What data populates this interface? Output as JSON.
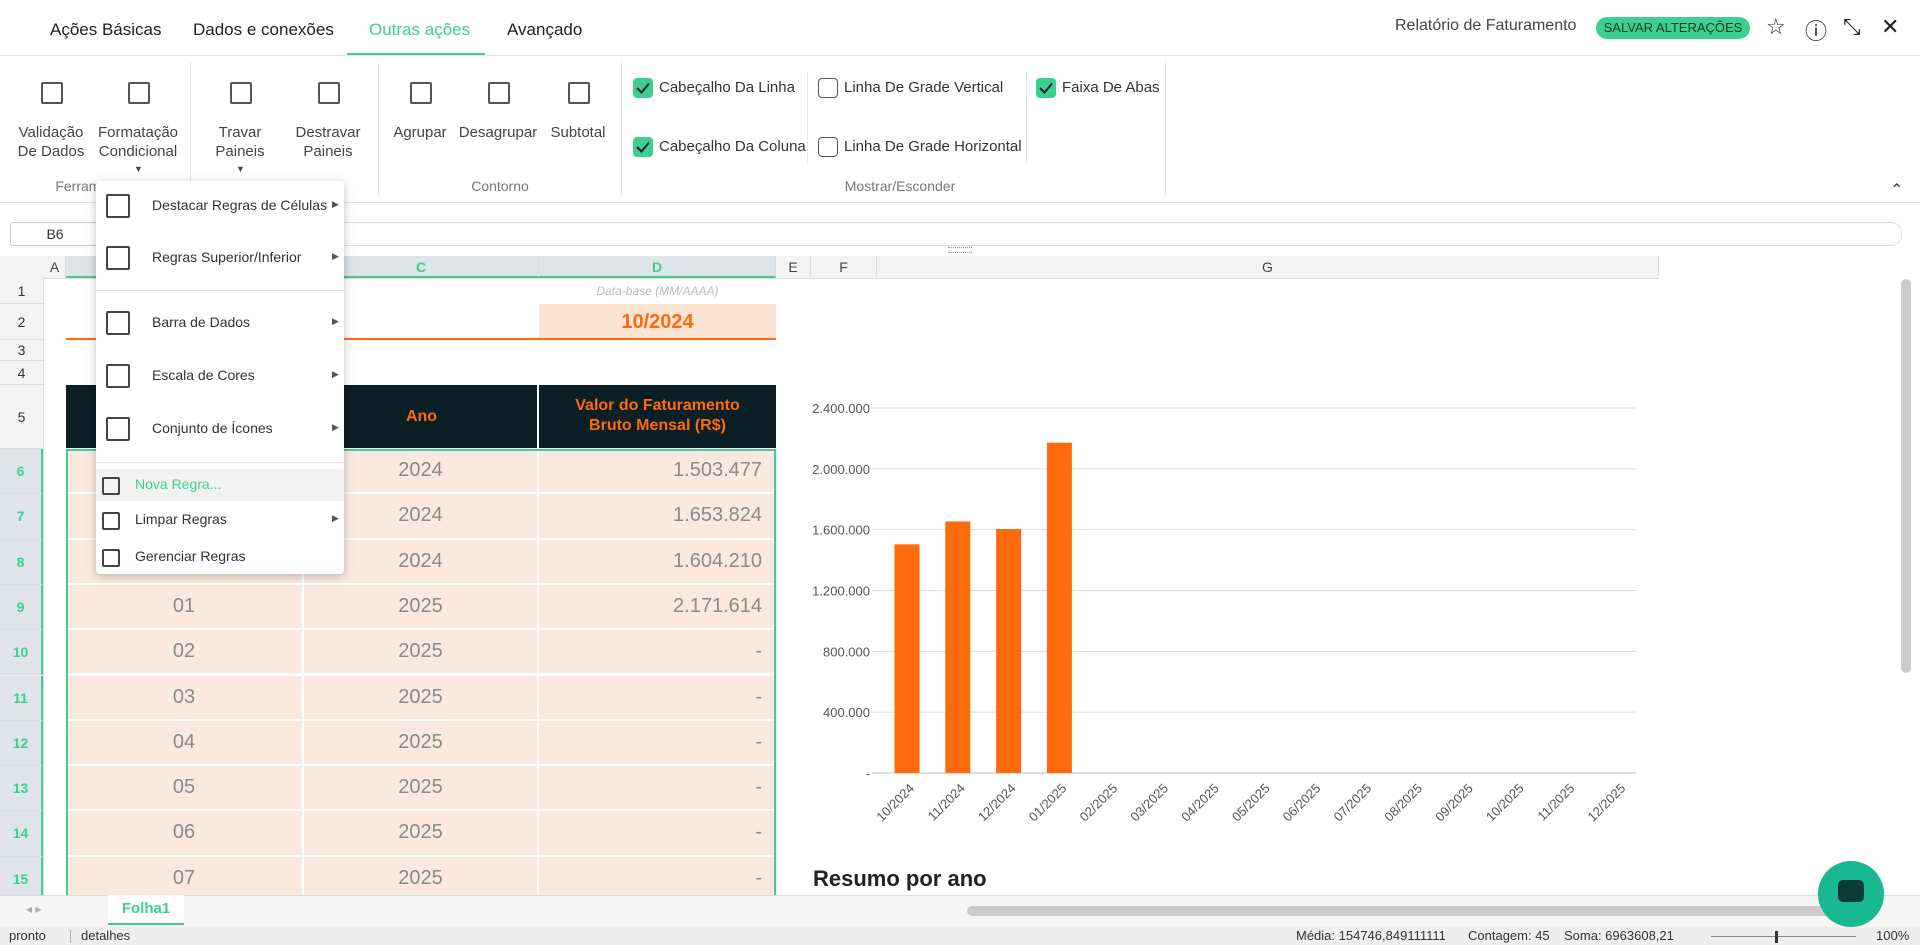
{
  "tabs": [
    "Ações Básicas",
    "Dados e conexões",
    "Outras ações",
    "Avançado"
  ],
  "header": {
    "report_title": "Relatório de Faturamento",
    "save_button": "SALVAR ALTERAÇÕES"
  },
  "ribbon": {
    "items": [
      [
        "Validação",
        "De Dados"
      ],
      [
        "Formatação",
        "Condicional"
      ],
      [
        "Travar",
        "Paineis"
      ],
      [
        "Destravar",
        "Paineis"
      ],
      [
        "Agrupar"
      ],
      [
        "Desagrupar"
      ],
      [
        "Subtotal"
      ]
    ],
    "groups": [
      "Ferramentas",
      "Contorno",
      "Mostrar/Esconder"
    ],
    "checkboxes": [
      {
        "label": "Cabeçalho Da Linha",
        "checked": true
      },
      {
        "label": "Cabeçalho Da Coluna",
        "checked": true
      },
      {
        "label": "Linha De Grade Vertical",
        "checked": false
      },
      {
        "label": "Linha De Grade Horizontal",
        "checked": false
      },
      {
        "label": "Faixa De Abas",
        "checked": true
      }
    ]
  },
  "formula_bar": {
    "cell": "B6"
  },
  "columns": [
    "A",
    "",
    "C",
    "D",
    "E",
    "F",
    "G"
  ],
  "rows": [
    1,
    2,
    3,
    4,
    5,
    6,
    7,
    8,
    9,
    10,
    11,
    12,
    13,
    14,
    15
  ],
  "sheet": {
    "date_caption": "Data-base (MM/AAAA)",
    "base_date": "10/2024",
    "header_year": "Ano",
    "header_value": [
      "Valor do Faturamento",
      "Bruto Mensal (R$)"
    ],
    "rows": [
      {
        "month": null,
        "year": "2024",
        "value": "1.503.477"
      },
      {
        "month": null,
        "year": "2024",
        "value": "1.653.824"
      },
      {
        "month": null,
        "year": "2024",
        "value": "1.604.210"
      },
      {
        "month": "01",
        "year": "2025",
        "value": "2.171.614"
      },
      {
        "month": "02",
        "year": "2025",
        "value": "-"
      },
      {
        "month": "03",
        "year": "2025",
        "value": "-"
      },
      {
        "month": "04",
        "year": "2025",
        "value": "-"
      },
      {
        "month": "05",
        "year": "2025",
        "value": "-"
      },
      {
        "month": "06",
        "year": "2025",
        "value": "-"
      },
      {
        "month": "07",
        "year": "2025",
        "value": "-"
      }
    ]
  },
  "chart": {
    "type": "bar",
    "categories": [
      "10/2024",
      "11/2024",
      "12/2024",
      "01/2025",
      "02/2025",
      "03/2025",
      "04/2025",
      "05/2025",
      "06/2025",
      "07/2025",
      "08/2025",
      "09/2025",
      "10/2025",
      "11/2025",
      "12/2025"
    ],
    "values": [
      1503477,
      1653824,
      1604210,
      2171614,
      null,
      null,
      null,
      null,
      null,
      null,
      null,
      null,
      null,
      null,
      null
    ],
    "color": "#ff6a0d",
    "ylim": [
      0,
      2400000
    ],
    "yticks": [
      {
        "value": 0,
        "label": "-"
      },
      {
        "value": 400000,
        "label": "400.000"
      },
      {
        "value": 800000,
        "label": "800.000"
      },
      {
        "value": 1200000,
        "label": "1.200.000"
      },
      {
        "value": 1600000,
        "label": "1.600.000"
      },
      {
        "value": 2000000,
        "label": "2.000.000"
      },
      {
        "value": 2400000,
        "label": "2.400.000"
      }
    ],
    "grid": true
  },
  "summary_title": "Resumo por ano",
  "menu": [
    {
      "label": "Destacar Regras de Células",
      "submenu": true
    },
    {
      "label": "Regras Superior/Inferior",
      "submenu": true
    },
    {
      "label": "Barra de Dados",
      "submenu": true
    },
    {
      "label": "Escala de Cores",
      "submenu": true
    },
    {
      "label": "Conjunto de Ícones",
      "submenu": true
    },
    {
      "label": "Nova Regra...",
      "submenu": false
    },
    {
      "label": "Limpar Regras",
      "submenu": true
    },
    {
      "label": "Gerenciar Regras",
      "submenu": false
    }
  ],
  "sheet_tab": "Folha1",
  "status": {
    "ready": "pronto",
    "details": "detalhes",
    "average": "Média: 154746,849111111",
    "count": "Contagem: 45",
    "sum": "Soma: 6963608,21",
    "zoom": "100%"
  }
}
